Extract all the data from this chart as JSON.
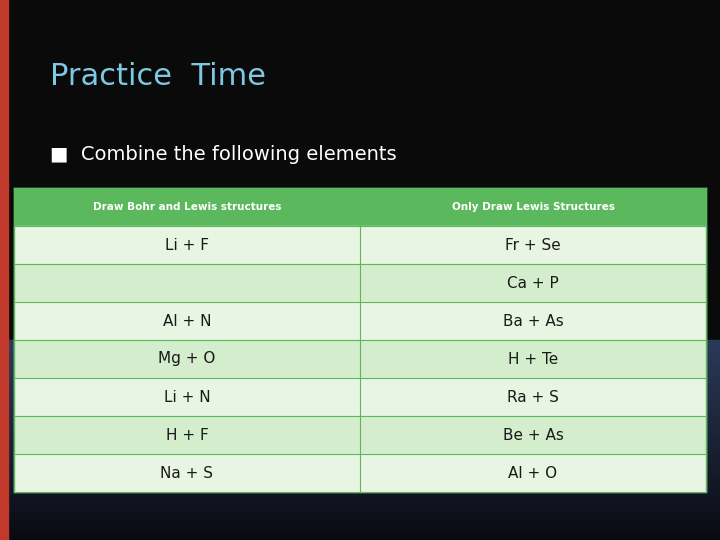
{
  "title": "Practice  Time",
  "subtitle": "Combine the following elements",
  "title_color": "#7EC8E3",
  "subtitle_color": "#FFFFFF",
  "header": [
    "Draw Bohr and Lewis structures",
    "Only Draw Lewis Structures"
  ],
  "header_bg": "#5cb85c",
  "header_text_color": "#FFFFFF",
  "rows": [
    [
      "Li + F",
      "Fr + Se"
    ],
    [
      "",
      "Ca + P"
    ],
    [
      "Al + N",
      "Ba + As"
    ],
    [
      "Mg + O",
      "H + Te"
    ],
    [
      "Li + N",
      "Ra + S"
    ],
    [
      "H + F",
      "Be + As"
    ],
    [
      "Na + S",
      "Al + O"
    ]
  ],
  "row_colors": [
    "#e8f5e2",
    "#d4edcc"
  ],
  "cell_text_color": "#1a1a1a",
  "table_border_color": "#5cb85c",
  "left_accent_color": "#c0392b"
}
